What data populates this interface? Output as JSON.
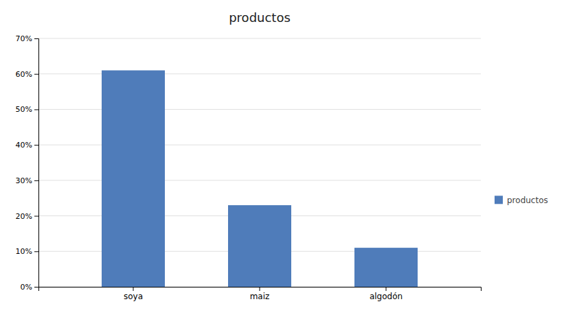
{
  "chart_data": {
    "type": "bar",
    "title": "productos",
    "categories": [
      "soya",
      "maiz",
      "algodón"
    ],
    "series": [
      {
        "name": "productos",
        "color": "#4f7cba",
        "values": [
          0.61,
          0.23,
          0.11
        ]
      }
    ],
    "ylim": [
      0,
      0.7
    ],
    "yticks": [
      {
        "value": 0.0,
        "label": "0%"
      },
      {
        "value": 0.1,
        "label": "10%"
      },
      {
        "value": 0.2,
        "label": "20%"
      },
      {
        "value": 0.3,
        "label": "30%"
      },
      {
        "value": 0.4,
        "label": "40%"
      },
      {
        "value": 0.5,
        "label": "50%"
      },
      {
        "value": 0.6,
        "label": "60%"
      },
      {
        "value": 0.7,
        "label": "70%"
      }
    ],
    "grid": true,
    "legend": "right"
  }
}
